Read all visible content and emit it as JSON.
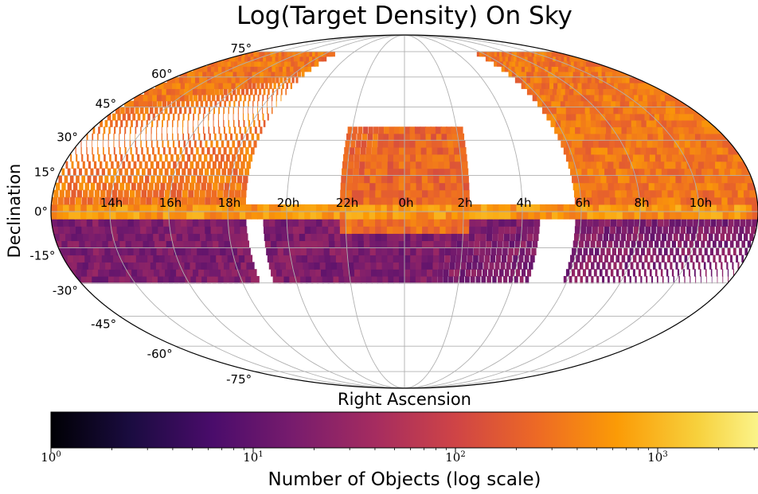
{
  "chart_data": {
    "type": "heatmap",
    "projection": "mollweide",
    "title": "Log(Target Density) On Sky",
    "xlabel": "Right Ascension",
    "ylabel": "Declination",
    "ra_tick_labels": [
      "14h",
      "16h",
      "18h",
      "20h",
      "22h",
      "0h",
      "2h",
      "4h",
      "6h",
      "8h",
      "10h"
    ],
    "ra_tick_hours": [
      14,
      16,
      18,
      20,
      22,
      0,
      2,
      4,
      6,
      8,
      10
    ],
    "dec_tick_labels": [
      "75°",
      "60°",
      "45°",
      "30°",
      "15°",
      "0°",
      "-15°",
      "-30°",
      "-45°",
      "-60°",
      "-75°"
    ],
    "dec_tick_values": [
      75,
      60,
      45,
      30,
      15,
      0,
      -15,
      -30,
      -45,
      -60,
      -75
    ],
    "ra_center_hours": 0,
    "dec_range": [
      -30,
      75
    ],
    "grid": true,
    "colormap": "inferno",
    "colorbar": {
      "label": "Number of Objects (log scale)",
      "scale": "log",
      "range": [
        1,
        10000
      ],
      "tick_values": [
        1,
        10,
        100,
        1000
      ],
      "tick_bases": [
        "10",
        "10",
        "10",
        "10"
      ],
      "tick_exponents": [
        "0",
        "1",
        "2",
        "3"
      ]
    },
    "regions": [
      {
        "ra_range_hours": [
          -12,
          -5.4
        ],
        "dec_range": [
          -2,
          75
        ],
        "log_density": 2.5
      },
      {
        "ra_range_hours": [
          -12,
          -5.4
        ],
        "dec_range": [
          -30,
          -2
        ],
        "log_density": 1.25
      },
      {
        "ra_range_hours": [
          5.8,
          12
        ],
        "dec_range": [
          -2,
          75
        ],
        "log_density": 2.5
      },
      {
        "ra_range_hours": [
          5.8,
          12
        ],
        "dec_range": [
          -30,
          -2
        ],
        "log_density": 1.25
      },
      {
        "ra_range_hours": [
          -4.8,
          4.6
        ],
        "dec_range": [
          -30,
          -2
        ],
        "log_density": 1.25
      },
      {
        "ra_range_hours": [
          -2.2,
          2.2
        ],
        "dec_range": [
          -2,
          36
        ],
        "log_density": 2.35
      },
      {
        "ra_range_hours": [
          -2.2,
          2.2
        ],
        "dec_range": [
          -10,
          -2
        ],
        "log_density": 2.45
      },
      {
        "ra_range_hours": [
          -11.5,
          11.5
        ],
        "dec_range": [
          -1.5,
          2
        ],
        "log_density": 2.75
      }
    ]
  }
}
